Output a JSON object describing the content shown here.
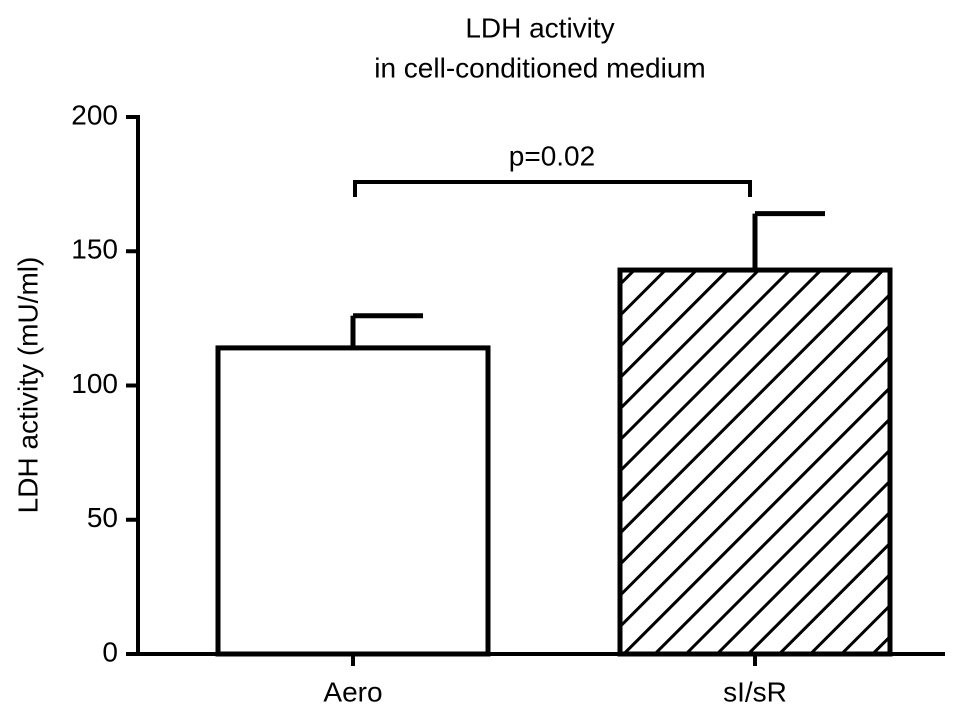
{
  "chart_data": {
    "type": "bar",
    "title": "LDH activity",
    "subtitle": "in cell-conditioned medium",
    "y_label": "LDH activity (mU/ml)",
    "categories": [
      "Aero",
      "sI/sR"
    ],
    "values": [
      114,
      143
    ],
    "errors": [
      12,
      21
    ],
    "color": "#000000",
    "patterns": [
      "none",
      "diagonal"
    ],
    "annotations": [
      {
        "text": "p=0.02"
      }
    ],
    "ylim": [
      0,
      200
    ],
    "yticks": [
      0,
      50,
      100,
      150,
      200
    ],
    "grid": false
  }
}
